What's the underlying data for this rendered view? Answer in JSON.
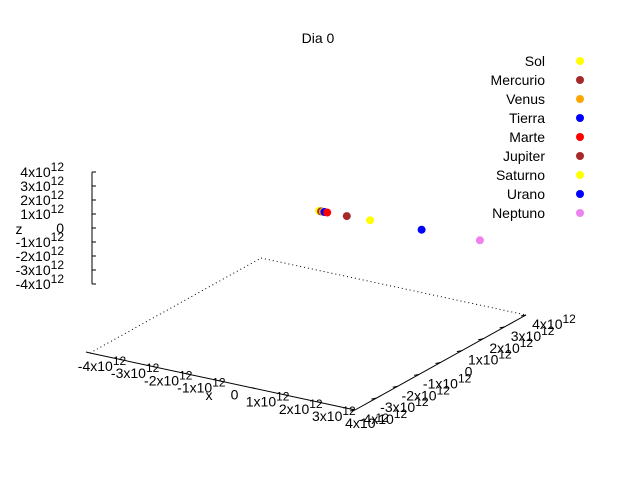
{
  "chart_data": {
    "type": "scatter",
    "title": "Dia 0",
    "xlabel": "x",
    "ylabel": "",
    "zlabel": "z",
    "xlim": [
      -4000000000000.0,
      4000000000000.0
    ],
    "ylim": [
      -4000000000000.0,
      4000000000000.0
    ],
    "zlim": [
      -4000000000000.0,
      4000000000000.0
    ],
    "grid": false,
    "legend_position": "top-right",
    "x_ticks": [
      "-4x10",
      "-3x10",
      "-2x10",
      "-1x10",
      "0",
      "1x10",
      "2x10",
      "3x10",
      "4x10"
    ],
    "y_ticks": [
      "-4x10",
      "-3x10",
      "-2x10",
      "-1x10",
      "0",
      "1x10",
      "2x10",
      "3x10",
      "4x10"
    ],
    "z_ticks": [
      "-4x10",
      "-3x10",
      "-2x10",
      "-1x10",
      "0",
      "1x10",
      "2x10",
      "3x10",
      "4x10"
    ],
    "tick_exponent": "12",
    "tick_values": [
      -4000000000000.0,
      -3000000000000.0,
      -2000000000000.0,
      -1000000000000.0,
      0,
      1000000000000.0,
      2000000000000.0,
      3000000000000.0,
      4000000000000.0
    ],
    "series": [
      {
        "name": "Sol",
        "color": "#ffff00",
        "x": 0.0,
        "y": 0.0,
        "z": 0.0
      },
      {
        "name": "Mercurio",
        "color": "#a52a2a",
        "x": 58000000000.0,
        "y": 0.0,
        "z": 0.0
      },
      {
        "name": "Venus",
        "color": "#ffa500",
        "x": 108000000000.0,
        "y": 0.0,
        "z": 0.0
      },
      {
        "name": "Tierra",
        "color": "#0000ff",
        "x": 150000000000.0,
        "y": 0.0,
        "z": 0.0
      },
      {
        "name": "Marte",
        "color": "#ff0000",
        "x": 228000000000.0,
        "y": 0.0,
        "z": 0.0
      },
      {
        "name": "Jupiter",
        "color": "#a52a2a",
        "x": 778000000000.0,
        "y": 0.0,
        "z": 0.0
      },
      {
        "name": "Saturno",
        "color": "#ffff00",
        "x": 1430000000000.0,
        "y": 0.0,
        "z": 0.0
      },
      {
        "name": "Urano",
        "color": "#0000ff",
        "x": 2870000000000.0,
        "y": 0.0,
        "z": 0.0
      },
      {
        "name": "Neptuno",
        "color": "#ee82ee",
        "x": 4500000000000.0,
        "y": 0.0,
        "z": 0.0
      }
    ]
  }
}
